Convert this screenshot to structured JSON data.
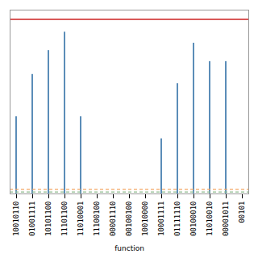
{
  "chart_data": {
    "type": "bar",
    "xlabel": "function",
    "categories": [
      "10010110",
      "01001111",
      "10101100",
      "11101100",
      "11010001",
      "11100100",
      "00001110",
      "00100100",
      "10010000",
      "10001111",
      "01111110",
      "00100010",
      "11010010",
      "00001011",
      "00101"
    ],
    "series": [
      {
        "type": "bar",
        "color": "#5b8db8",
        "values": [
          0.42,
          0.65,
          0.78,
          0.88,
          0.42,
          0.0,
          0.0,
          0.0,
          0.0,
          0.3,
          0.6,
          0.82,
          0.72,
          0.72,
          0.0
        ]
      },
      {
        "type": "hline",
        "color": "#f4a460",
        "line_style": "dashed",
        "y": 0.025
      },
      {
        "type": "hline",
        "color": "#8fbc8f",
        "line_style": "dashed",
        "y": 0.01
      },
      {
        "type": "hline",
        "color": "#cc2222",
        "line_style": "solid",
        "y": 0.95
      }
    ],
    "ylim": [
      0,
      1.0
    ],
    "tick_labels": "x",
    "grid": false
  }
}
